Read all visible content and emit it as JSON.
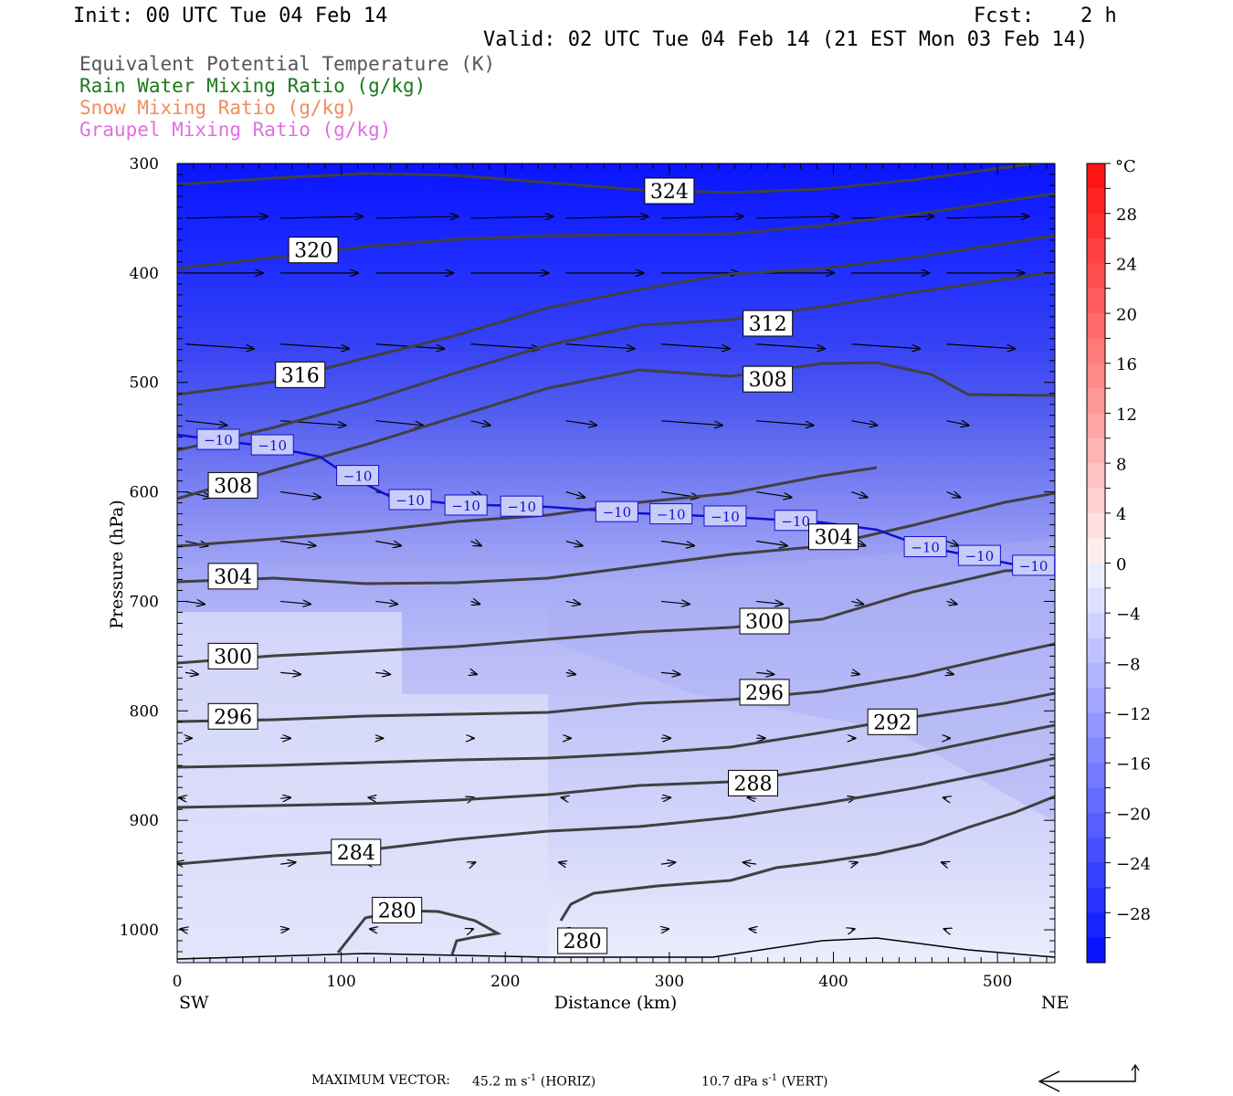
{
  "header": {
    "init": "Init: 00 UTC Tue 04 Feb 14",
    "fcst_label": "Fcst:",
    "fcst_value": "2 h",
    "valid": "Valid: 02 UTC Tue 04 Feb 14 (21 EST Mon 03 Feb 14)"
  },
  "legend": [
    {
      "label": "Equivalent Potential Temperature (K)",
      "color": "#555555"
    },
    {
      "label": "Rain Water Mixing Ratio (g/kg)",
      "color": "#1a7a1a"
    },
    {
      "label": "Snow Mixing Ratio (g/kg)",
      "color": "#f08c5a"
    },
    {
      "label": "Graupel Mixing Ratio (g/kg)",
      "color": "#e070e0"
    }
  ],
  "footer": {
    "max_vector_label": "MAXIMUM VECTOR:",
    "horiz": "45.2 m s",
    "horiz_unit": "(HORIZ)",
    "vert": "10.7 dPa s",
    "vert_unit": "(VERT)",
    "exp": "-1"
  },
  "chart_data": {
    "type": "contour",
    "xlabel": "Distance (km)",
    "ylabel": "Pressure (hPa)",
    "xlim": [
      0,
      535
    ],
    "ylim": [
      1030,
      300
    ],
    "x_ticks": [
      0,
      100,
      200,
      300,
      400,
      500
    ],
    "y_ticks": [
      300,
      400,
      500,
      600,
      700,
      800,
      900,
      1000
    ],
    "x_end_labels": {
      "left": "SW",
      "right": "NE"
    },
    "colorbar": {
      "unit": "°C",
      "tick_labels": [
        "28",
        "24",
        "20",
        "16",
        "12",
        "8",
        "4",
        "0",
        "−4",
        "−8",
        "−12",
        "−16",
        "−20",
        "−24",
        "−28"
      ]
    },
    "theta_e_labels": [
      {
        "text": "324",
        "x": 300,
        "p": 325
      },
      {
        "text": "320",
        "x": 83,
        "p": 379
      },
      {
        "text": "316",
        "x": 75,
        "p": 493
      },
      {
        "text": "312",
        "x": 360,
        "p": 446
      },
      {
        "text": "308",
        "x": 360,
        "p": 497
      },
      {
        "text": "308",
        "x": 34,
        "p": 594
      },
      {
        "text": "304",
        "x": 400,
        "p": 641
      },
      {
        "text": "304",
        "x": 34,
        "p": 677
      },
      {
        "text": "300",
        "x": 358,
        "p": 718
      },
      {
        "text": "300",
        "x": 34,
        "p": 750
      },
      {
        "text": "296",
        "x": 358,
        "p": 783
      },
      {
        "text": "296",
        "x": 34,
        "p": 805
      },
      {
        "text": "292",
        "x": 436,
        "p": 810
      },
      {
        "text": "288",
        "x": 351,
        "p": 866
      },
      {
        "text": "284",
        "x": 109,
        "p": 929
      },
      {
        "text": "280",
        "x": 134,
        "p": 982
      },
      {
        "text": "280",
        "x": 247,
        "p": 1010
      }
    ],
    "isotherm_labels": [
      {
        "text": "−10",
        "x": 25,
        "p": 552
      },
      {
        "text": "−10",
        "x": 58,
        "p": 557
      },
      {
        "text": "−10",
        "x": 110,
        "p": 585
      },
      {
        "text": "−10",
        "x": 142,
        "p": 607
      },
      {
        "text": "−10",
        "x": 176,
        "p": 612
      },
      {
        "text": "−10",
        "x": 210,
        "p": 613
      },
      {
        "text": "−10",
        "x": 268,
        "p": 618
      },
      {
        "text": "−10",
        "x": 301,
        "p": 620
      },
      {
        "text": "−10",
        "x": 334,
        "p": 622
      },
      {
        "text": "−10",
        "x": 377,
        "p": 626
      },
      {
        "text": "−10",
        "x": 456,
        "p": 650
      },
      {
        "text": "−10",
        "x": 489,
        "p": 658
      },
      {
        "text": "−10",
        "x": 522,
        "p": 667
      }
    ]
  }
}
